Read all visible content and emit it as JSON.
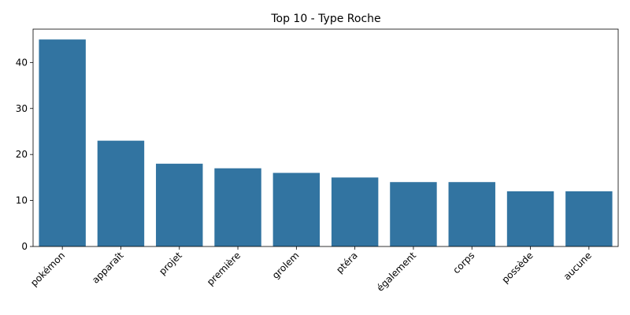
{
  "chart_data": {
    "type": "bar",
    "title": "Top 10 - Type Roche",
    "xlabel": "",
    "ylabel": "",
    "categories": [
      "pokémon",
      "apparaît",
      "projet",
      "première",
      "grolem",
      "ptéra",
      "également",
      "corps",
      "possède",
      "aucune"
    ],
    "values": [
      45,
      23,
      18,
      17,
      16,
      15,
      14,
      14,
      12,
      12
    ],
    "ylim": [
      0,
      47.25
    ],
    "yticks": [
      0,
      10,
      20,
      30,
      40
    ],
    "grid": false,
    "legend": "none",
    "bar_color": "#3274a1",
    "x_tick_rotation": 45
  }
}
